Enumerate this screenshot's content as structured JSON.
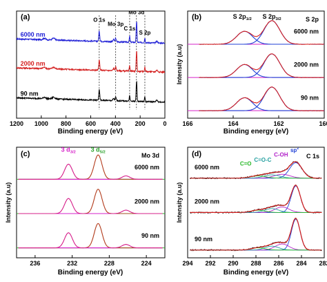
{
  "chart_data": [
    {
      "type": "line",
      "panel_label": "(a)",
      "xlabel": "Binding energy (eV)",
      "ylabel": "",
      "xlim": [
        1200,
        0
      ],
      "ylim": [
        0,
        1
      ],
      "xticks": [
        "1200",
        "1000",
        "800",
        "600",
        "400",
        "200",
        "0"
      ],
      "xtick_values": [
        1200,
        1000,
        800,
        600,
        400,
        200,
        0
      ],
      "series": [
        {
          "name": "6000 nm",
          "color": "#1f1fd6",
          "baseline": 0.7,
          "label_x": 1180
        },
        {
          "name": "2000 nm",
          "color": "#d42020",
          "baseline": 0.43,
          "label_x": 1180
        },
        {
          "name": "90 nm",
          "color": "#000000",
          "baseline": 0.15,
          "label_x": 1180
        }
      ],
      "peaks": [
        {
          "label": "O 1s",
          "x": 531
        },
        {
          "label": "Mo 3p",
          "x": 398
        },
        {
          "label": "C 1s",
          "x": 285
        },
        {
          "label": "Mo 3d",
          "x": 230
        },
        {
          "label": "S 2p",
          "x": 162
        }
      ]
    },
    {
      "type": "line",
      "panel_label": "(b)",
      "corner_label": "S 2p",
      "xlabel": "Binding energy (eV)",
      "ylabel": "Intensity (a.u)",
      "xlim": [
        166,
        160
      ],
      "ylim": [
        0,
        1
      ],
      "xticks": [
        "166",
        "164",
        "162",
        "160"
      ],
      "xtick_values": [
        166,
        164,
        162,
        160
      ],
      "series": [
        {
          "name": "6000 nm",
          "baseline": 0.69
        },
        {
          "name": "2000 nm",
          "baseline": 0.38
        },
        {
          "name": "90 nm",
          "baseline": 0.07
        }
      ],
      "peak_positions": [
        163.5,
        162.3
      ],
      "peak_amplitudes": [
        0.55,
        1.0
      ],
      "annotations": [
        {
          "text": "S 2p",
          "sub": "1/2",
          "x": 163.6
        },
        {
          "text": "S 2p",
          "sub": "3/2",
          "x": 162.3
        }
      ]
    },
    {
      "type": "line",
      "panel_label": "(c)",
      "corner_label": "Mo 3d",
      "xlabel": "Binding energy (eV)",
      "ylabel": "Intensity (a.u)",
      "xlim": [
        238,
        222
      ],
      "ylim": [
        0,
        1
      ],
      "xticks": [
        "236",
        "232",
        "228",
        "224"
      ],
      "xtick_values": [
        236,
        232,
        228,
        224
      ],
      "series": [
        {
          "name": "6000 nm",
          "baseline": 0.71
        },
        {
          "name": "2000 nm",
          "baseline": 0.4
        },
        {
          "name": "90 nm",
          "baseline": 0.09
        }
      ],
      "peak_positions": [
        232.4,
        229.2,
        226.2
      ],
      "peak_amplitudes": [
        0.62,
        1.0,
        0.14
      ],
      "annotations": [
        {
          "text": "3 d",
          "sub": "3/2",
          "x": 232.4,
          "color": "#d620c8"
        },
        {
          "text": "3 d",
          "sub": "5/2",
          "x": 229.2,
          "color": "#28a028"
        }
      ]
    },
    {
      "type": "line",
      "panel_label": "(d)",
      "corner_label": "C 1s",
      "xlabel": "Binding energy (eV)",
      "ylabel": "Intensity (a.u)",
      "xlim": [
        294,
        282
      ],
      "ylim": [
        0,
        1
      ],
      "xticks": [
        "294",
        "292",
        "290",
        "288",
        "286",
        "284",
        "282"
      ],
      "xtick_values": [
        294,
        292,
        290,
        288,
        286,
        284,
        282
      ],
      "series": [
        {
          "name": "6000 nm",
          "baseline": 0.72
        },
        {
          "name": "2000 nm",
          "baseline": 0.41
        },
        {
          "name": "90 nm",
          "baseline": 0.07
        }
      ],
      "components": [
        {
          "label": "sp",
          "sup": "2",
          "x": 284.5,
          "color": "#1f3fd6"
        },
        {
          "label": "C-OH",
          "x": 285.7,
          "color": "#b020c8"
        },
        {
          "label": "C=O-C",
          "x": 286.6,
          "color": "#26a0a0"
        },
        {
          "label": "C=O",
          "x": 287.8,
          "color": "#28b828"
        }
      ]
    }
  ]
}
